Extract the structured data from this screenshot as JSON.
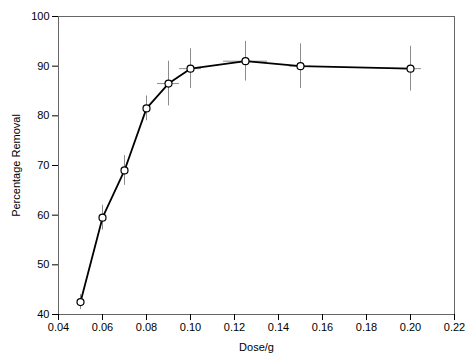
{
  "chart_data": {
    "type": "line",
    "x": [
      0.05,
      0.06,
      0.07,
      0.08,
      0.09,
      0.1,
      0.125,
      0.15,
      0.2
    ],
    "values": [
      42.5,
      59.5,
      69.0,
      81.5,
      86.5,
      89.5,
      91.0,
      90.0,
      89.5
    ],
    "yerr": [
      1.5,
      2.5,
      3.0,
      2.5,
      4.5,
      4.0,
      4.0,
      4.5,
      4.5
    ],
    "xerr": [
      0.0,
      0.0,
      0.0,
      0.0,
      0.005,
      0.005,
      0.01,
      0.005,
      0.005
    ],
    "xlabel": "Dose/g",
    "ylabel": "Percentage Removal",
    "xlim": [
      0.04,
      0.22
    ],
    "ylim": [
      40,
      100
    ],
    "xticks": [
      0.04,
      0.06,
      0.08,
      {
        "value": 0.1,
        "label": "0.10"
      },
      0.12,
      0.14,
      0.16,
      0.18,
      {
        "value": 0.2,
        "label": "0.20"
      },
      0.22
    ],
    "yticks": [
      40,
      50,
      60,
      70,
      80,
      90,
      100
    ],
    "color": "#000000",
    "marker": "circle"
  }
}
